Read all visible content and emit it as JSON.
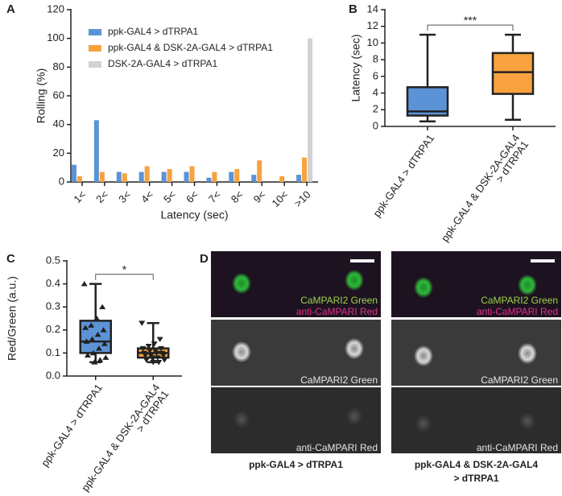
{
  "chart_data": [
    {
      "type": "bar",
      "panel": "A",
      "ylabel": "Rolling (%)",
      "xlabel": "Latency (sec)",
      "categories": [
        "1<",
        "2<",
        "3<",
        "4<",
        "5<",
        "6<",
        "7<",
        "8<",
        "9<",
        "10<",
        ">10"
      ],
      "series": [
        {
          "name": "ppk-GAL4 > dTRPA1",
          "color": "#5b93d6",
          "values": [
            12,
            43,
            7,
            7,
            7,
            7,
            3,
            7,
            5,
            0,
            5
          ]
        },
        {
          "name": "ppk-GAL4 & DSK-2A-GAL4 > dTRPA1",
          "color": "#f7a23e",
          "values": [
            4,
            7,
            6,
            11,
            9,
            11,
            7,
            9,
            15,
            4,
            17
          ]
        },
        {
          "name": "DSK-2A-GAL4 > dTRPA1",
          "color": "#d2d2d2",
          "values": [
            0,
            0,
            0,
            0,
            0,
            0,
            0,
            0,
            0,
            0,
            100
          ]
        }
      ],
      "ylim": [
        0,
        120
      ],
      "yticks": [
        0,
        20,
        40,
        60,
        80,
        100,
        120
      ]
    },
    {
      "type": "box",
      "panel": "B",
      "ylabel": "Latency (sec)",
      "significance": "***",
      "categories": [
        [
          "ppk-GAL4 > dTRPA1"
        ],
        [
          "ppk-GAL4 & DSK-2A-GAL4",
          "> dTRPA1"
        ]
      ],
      "boxes": [
        {
          "color": "#5b93d6",
          "min": 0.6,
          "q1": 1.3,
          "median": 1.8,
          "q3": 4.7,
          "max": 11
        },
        {
          "color": "#f7a23e",
          "min": 0.8,
          "q1": 3.9,
          "median": 6.5,
          "q3": 8.8,
          "max": 11
        }
      ],
      "ylim": [
        0,
        14
      ],
      "yticks": [
        0,
        2,
        4,
        6,
        8,
        10,
        12,
        14
      ]
    },
    {
      "type": "box",
      "panel": "C",
      "ylabel": "Red/Green (a.u.)",
      "significance": "*",
      "categories": [
        [
          "ppk-GAL4 > dTRPA1"
        ],
        [
          "ppk-GAL4 & DSK-2A-GAL4",
          "> dTRPA1"
        ]
      ],
      "boxes": [
        {
          "color": "#5b93d6",
          "marker": "triangle-up",
          "min": 0.06,
          "q1": 0.1,
          "median": 0.15,
          "q3": 0.24,
          "max": 0.4,
          "points": [
            0.4,
            0.3,
            0.25,
            0.22,
            0.21,
            0.2,
            0.18,
            0.16,
            0.15,
            0.14,
            0.12,
            0.1,
            0.09,
            0.08,
            0.07,
            0.06
          ]
        },
        {
          "color": "#f7a23e",
          "marker": "triangle-down",
          "min": 0.06,
          "q1": 0.08,
          "median": 0.1,
          "q3": 0.12,
          "max": 0.23,
          "points": [
            0.23,
            0.16,
            0.14,
            0.13,
            0.12,
            0.12,
            0.11,
            0.11,
            0.1,
            0.1,
            0.1,
            0.09,
            0.09,
            0.09,
            0.08,
            0.08,
            0.07,
            0.07,
            0.06,
            0.06
          ]
        }
      ],
      "ylim": [
        0,
        0.5
      ],
      "yticks": [
        {
          "value": 0,
          "label": "0.0"
        },
        0.1,
        0.2,
        0.3,
        0.4,
        0.5
      ]
    }
  ],
  "images": {
    "panel": "D",
    "columns": [
      {
        "caption": [
          "ppk-GAL4 > dTRPA1"
        ],
        "rows": [
          [
            "CaMPARI2 Green",
            "anti-CaMPARI Red"
          ],
          [
            "CaMPARI2 Green"
          ],
          [
            "anti-CaMPARI Red"
          ]
        ]
      },
      {
        "caption": [
          "ppk-GAL4 & DSK-2A-GAL4",
          "> dTRPA1"
        ],
        "rows": [
          [
            "CaMPARI2 Green",
            "anti-CaMPARI Red"
          ],
          [
            "CaMPARI2 Green"
          ],
          [
            "anti-CaMPARI Red"
          ]
        ]
      }
    ]
  }
}
